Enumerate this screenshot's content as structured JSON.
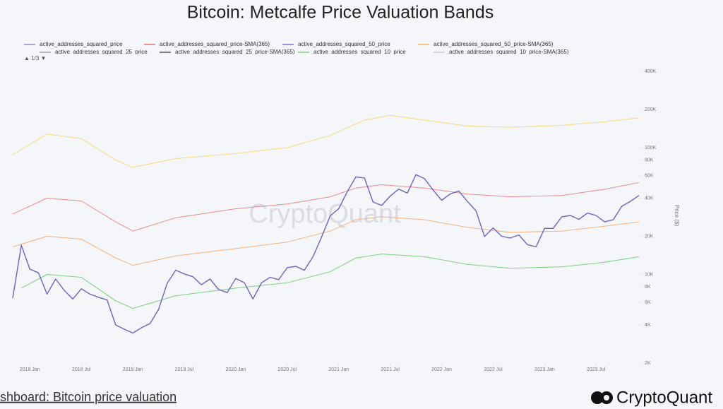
{
  "chart_data": {
    "type": "line",
    "title": "Bitcoin: Metcalfe Price Valuation Bands",
    "legend": [
      {
        "name": "active_addresses_squared_price",
        "color": "#8e88c9"
      },
      {
        "name": "active_addresses_squared_price-SMA(365)",
        "color": "#e57373"
      },
      {
        "name": "active_addresses_squared_50_price",
        "color": "#7b73c9"
      },
      {
        "name": "active_addresses_squared_50_price-SMA(365)",
        "color": "#f4b25c"
      },
      {
        "name": "active_addresses_squared_25_price",
        "color": "#9aa0b4"
      },
      {
        "name": "active_addresses_squared_25_price-SMA(365)",
        "color": "#55596a"
      },
      {
        "name": "active_addresses_squared_10_price",
        "color": "#7bcf7b"
      },
      {
        "name": "active_addresses_squared_10_price-SMA(365)",
        "color": "#c8cbd6"
      }
    ],
    "legend_page": "▲ 1/3 ▼",
    "watermark": "CryptoQuant",
    "y_label": "Price ($)",
    "footer": "shboard: Bitcoin price valuation",
    "brand": "CryptoQuant",
    "log_scale": true,
    "grid": false,
    "xlim": [
      "2017-11",
      "2023-12"
    ],
    "xticks": [
      {
        "value": "2018-01",
        "label": "2018 Jan"
      },
      {
        "value": "2018-07",
        "label": "2018 Jul"
      },
      {
        "value": "2019-01",
        "label": "2019 Jan"
      },
      {
        "value": "2019-07",
        "label": "2019 Jul"
      },
      {
        "value": "2020-01",
        "label": "2020 Jan"
      },
      {
        "value": "2020-07",
        "label": "2020 Jul"
      },
      {
        "value": "2021-01",
        "label": "2021 Jan"
      },
      {
        "value": "2021-07",
        "label": "2021 Jul"
      },
      {
        "value": "2022-01",
        "label": "2022 Jan"
      },
      {
        "value": "2022-07",
        "label": "2022 Jul"
      },
      {
        "value": "2023-01",
        "label": "2023 Jan"
      },
      {
        "value": "2023-07",
        "label": "2023 Jul"
      }
    ],
    "ylim": [
      2000,
      400000
    ],
    "yticks": [
      {
        "value": 2000,
        "label": "2K"
      },
      {
        "value": 4000,
        "label": "4K"
      },
      {
        "value": 6000,
        "label": "6K"
      },
      {
        "value": 8000,
        "label": "8K"
      },
      {
        "value": 10000,
        "label": "10K"
      },
      {
        "value": 20000,
        "label": "20K"
      },
      {
        "value": 40000,
        "label": "40K"
      },
      {
        "value": 60000,
        "label": "60K"
      },
      {
        "value": 80000,
        "label": "80K"
      },
      {
        "value": 100000,
        "label": "100K"
      },
      {
        "value": 200000,
        "label": "200K"
      },
      {
        "value": 400000,
        "label": "400K"
      }
    ],
    "series": [
      {
        "color": "#f8d97a",
        "x": [
          "2017-11",
          "2018-03",
          "2018-07",
          "2018-11",
          "2019-01",
          "2019-06",
          "2020-01",
          "2020-07",
          "2020-12",
          "2021-04",
          "2021-07",
          "2021-11",
          "2022-04",
          "2022-09",
          "2023-03",
          "2023-08",
          "2023-12"
        ],
        "values": [
          88000,
          128000,
          118000,
          80000,
          70000,
          82000,
          90000,
          100000,
          125000,
          165000,
          180000,
          165000,
          148000,
          145000,
          150000,
          160000,
          172000
        ]
      },
      {
        "color": "#ec8a8a",
        "x": [
          "2017-11",
          "2018-03",
          "2018-07",
          "2018-11",
          "2019-01",
          "2019-06",
          "2020-01",
          "2020-07",
          "2020-12",
          "2021-03",
          "2021-06",
          "2021-11",
          "2022-04",
          "2022-09",
          "2023-03",
          "2023-08",
          "2023-12"
        ],
        "values": [
          30000,
          40000,
          38000,
          26000,
          22000,
          28000,
          33000,
          36000,
          41000,
          48000,
          51000,
          48000,
          43000,
          41000,
          42000,
          47000,
          53000
        ]
      },
      {
        "color": "#f5b07a",
        "x": [
          "2017-11",
          "2018-03",
          "2018-07",
          "2018-11",
          "2019-01",
          "2019-06",
          "2020-01",
          "2020-07",
          "2020-12",
          "2021-03",
          "2021-06",
          "2021-11",
          "2022-04",
          "2022-09",
          "2023-03",
          "2023-08",
          "2023-12"
        ],
        "values": [
          16500,
          20000,
          19000,
          13500,
          11800,
          14000,
          16000,
          18000,
          22000,
          27000,
          28500,
          27000,
          23500,
          21500,
          22000,
          24000,
          26000
        ]
      },
      {
        "color": "#7bcf7b",
        "x": [
          "2017-12",
          "2018-03",
          "2018-07",
          "2018-11",
          "2019-01",
          "2019-06",
          "2020-01",
          "2020-07",
          "2020-12",
          "2021-03",
          "2021-06",
          "2021-11",
          "2022-04",
          "2022-09",
          "2023-03",
          "2023-08",
          "2023-12"
        ],
        "values": [
          7800,
          10000,
          9500,
          6200,
          5400,
          6800,
          7800,
          8600,
          10500,
          13500,
          14500,
          13800,
          12000,
          11200,
          11500,
          12500,
          13800
        ]
      },
      {
        "color": "#6e60c8",
        "x": [
          "2017-11",
          "2017-12",
          "2018-01",
          "2018-02",
          "2018-03",
          "2018-04",
          "2018-05",
          "2018-06",
          "2018-07",
          "2018-08",
          "2018-09",
          "2018-10",
          "2018-11",
          "2018-12",
          "2019-01",
          "2019-02",
          "2019-03",
          "2019-04",
          "2019-05",
          "2019-06",
          "2019-07",
          "2019-08",
          "2019-09",
          "2019-10",
          "2019-11",
          "2019-12",
          "2020-01",
          "2020-02",
          "2020-03",
          "2020-04",
          "2020-05",
          "2020-06",
          "2020-07",
          "2020-08",
          "2020-09",
          "2020-10",
          "2020-11",
          "2020-12",
          "2021-01",
          "2021-02",
          "2021-03",
          "2021-04",
          "2021-05",
          "2021-06",
          "2021-07",
          "2021-08",
          "2021-09",
          "2021-10",
          "2021-11",
          "2021-12",
          "2022-01",
          "2022-02",
          "2022-03",
          "2022-04",
          "2022-05",
          "2022-06",
          "2022-07",
          "2022-08",
          "2022-09",
          "2022-10",
          "2022-11",
          "2022-12",
          "2023-01",
          "2023-02",
          "2023-03",
          "2023-04",
          "2023-05",
          "2023-06",
          "2023-07",
          "2023-08",
          "2023-09",
          "2023-10",
          "2023-11",
          "2023-12"
        ],
        "values": [
          6500,
          17000,
          11000,
          10300,
          7000,
          9200,
          7500,
          6400,
          7700,
          7000,
          6600,
          6300,
          4000,
          3700,
          3450,
          3800,
          4100,
          5300,
          8500,
          10800,
          10100,
          9600,
          8300,
          9200,
          7600,
          7200,
          9300,
          8600,
          6400,
          8600,
          9500,
          9100,
          11300,
          11600,
          10800,
          13800,
          19700,
          29000,
          33000,
          45000,
          58800,
          57700,
          37300,
          35000,
          41500,
          47100,
          43800,
          61300,
          57000,
          46300,
          38500,
          43200,
          45500,
          37700,
          31800,
          19900,
          23300,
          20000,
          19400,
          20500,
          17200,
          16500,
          23100,
          23100,
          28500,
          29200,
          27200,
          30500,
          29200,
          26000,
          27000,
          34500,
          37700,
          42000
        ]
      }
    ]
  }
}
